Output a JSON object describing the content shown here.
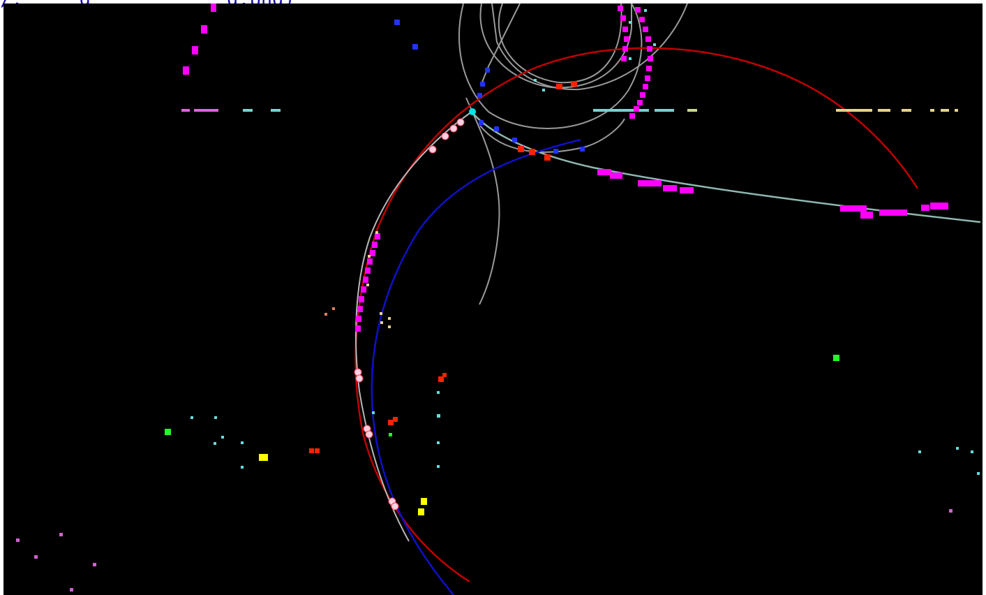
{
  "caption": {
    "prefix": "/, ",
    "link_text": "____g_____ ______g.png",
    "suffix": ")"
  },
  "colors": {
    "background": "#000000",
    "track_red": "#c00000",
    "track_blue": "#1010c8",
    "track_grey": "#9a9a9a",
    "track_teal": "#8fb8b0",
    "hit_magenta": "#ff00ff",
    "hit_cyan": "#66dddd",
    "hit_blue": "#2233ff",
    "hit_red": "#ff2200",
    "hit_yellow": "#ffff00",
    "hit_green": "#22ff22",
    "hit_khaki": "#e6d38a",
    "hit_orchid": "#d060d0"
  }
}
